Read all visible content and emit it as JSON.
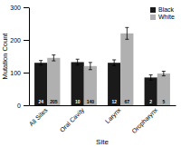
{
  "chart_data": {
    "type": "bar",
    "categories": [
      "All Sites",
      "Oral Cavity",
      "Larynx",
      "Oropharynx"
    ],
    "series": [
      {
        "name": "Black",
        "color": "#1a1a1a",
        "values": [
          130,
          132,
          130,
          85
        ],
        "errors": [
          7,
          9,
          9,
          8
        ],
        "n": [
          "24",
          "10",
          "12",
          "2"
        ]
      },
      {
        "name": "White",
        "color": "#b0b0b0",
        "values": [
          145,
          120,
          220,
          97
        ],
        "errors": [
          9,
          11,
          18,
          7
        ],
        "n": [
          "205",
          "140",
          "67",
          "5"
        ]
      }
    ],
    "xlabel": "Site",
    "ylabel": "Mutation Count",
    "ylim": [
      0,
      300
    ],
    "yticks": [
      0,
      100,
      200,
      300
    ],
    "grid": false,
    "legend": "upper right"
  }
}
